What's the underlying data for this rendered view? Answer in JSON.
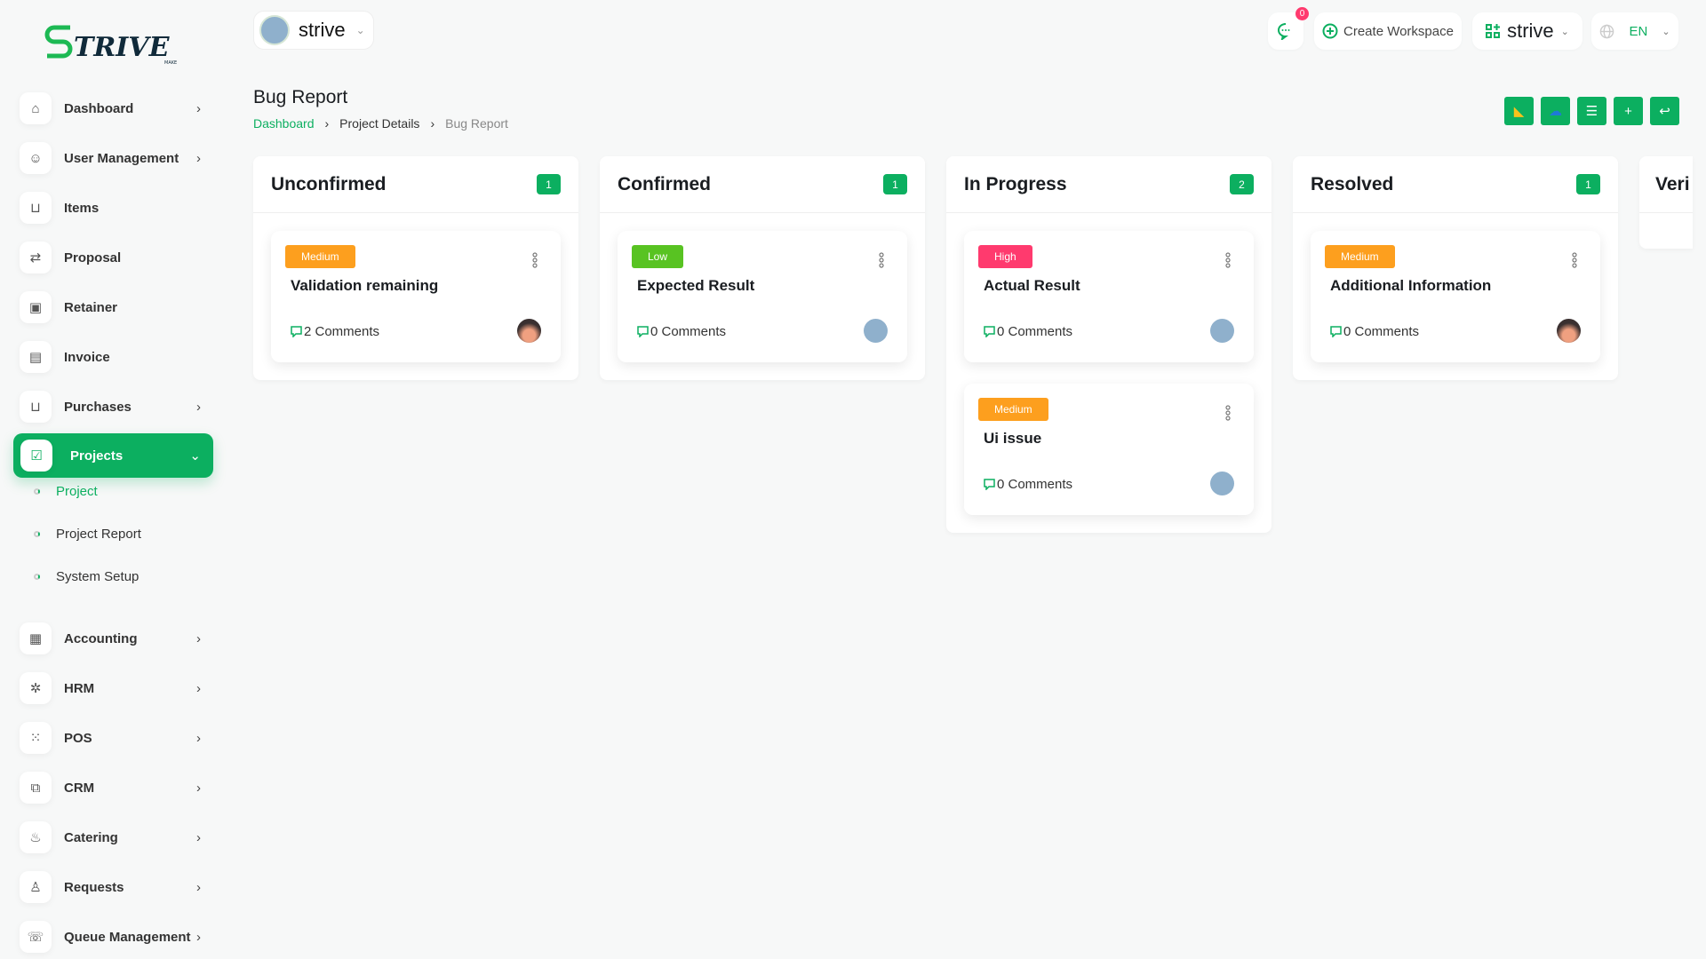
{
  "brand": {
    "logo_text": "STRIVE",
    "logo_sub": "MAKE",
    "accent": "#0caf60"
  },
  "workspace": {
    "name": "strive"
  },
  "topbar": {
    "chat_count": "0",
    "create_workspace": "Create Workspace",
    "workspace_switch": "strive",
    "language": "EN"
  },
  "sidebar": {
    "items": [
      {
        "label": "Dashboard",
        "icon": "home-icon",
        "chevron": true
      },
      {
        "label": "User Management",
        "icon": "users-icon",
        "chevron": true
      },
      {
        "label": "Items",
        "icon": "cart-icon",
        "chevron": false
      },
      {
        "label": "Proposal",
        "icon": "proposal-icon",
        "chevron": false
      },
      {
        "label": "Retainer",
        "icon": "retainer-icon",
        "chevron": false
      },
      {
        "label": "Invoice",
        "icon": "invoice-icon",
        "chevron": false
      },
      {
        "label": "Purchases",
        "icon": "cart-icon",
        "chevron": true
      },
      {
        "label": "Projects",
        "icon": "checkbox-icon",
        "chevron": true,
        "active": true
      },
      {
        "label": "Accounting",
        "icon": "grid-icon",
        "chevron": true
      },
      {
        "label": "HRM",
        "icon": "hrm-icon",
        "chevron": true
      },
      {
        "label": "POS",
        "icon": "dots-grid-icon",
        "chevron": true
      },
      {
        "label": "CRM",
        "icon": "crm-icon",
        "chevron": true
      },
      {
        "label": "Catering",
        "icon": "catering-icon",
        "chevron": true
      },
      {
        "label": "Requests",
        "icon": "user-plus-icon",
        "chevron": true
      },
      {
        "label": "Queue Management",
        "icon": "phone-icon",
        "chevron": true
      }
    ],
    "sub_items": [
      {
        "label": "Project",
        "active": true
      },
      {
        "label": "Project Report"
      },
      {
        "label": "System Setup"
      }
    ]
  },
  "page": {
    "title": "Bug Report",
    "breadcrumb": [
      "Dashboard",
      "Project Details",
      "Bug Report"
    ]
  },
  "actions": [
    {
      "icon": "google-drive-icon"
    },
    {
      "icon": "onedrive-icon"
    },
    {
      "icon": "list-icon"
    },
    {
      "icon": "plus-icon"
    },
    {
      "icon": "back-icon"
    }
  ],
  "columns": [
    {
      "title": "Unconfirmed",
      "count": "1",
      "cards": [
        {
          "priority": "Medium",
          "color": "#fd9f1e",
          "title": "Validation remaining",
          "comments": "2 Comments",
          "avatar": "photo"
        }
      ]
    },
    {
      "title": "Confirmed",
      "count": "1",
      "cards": [
        {
          "priority": "Low",
          "color": "#58c322",
          "title": "Expected Result",
          "comments": "0 Comments",
          "avatar": "building"
        }
      ]
    },
    {
      "title": "In Progress",
      "count": "2",
      "cards": [
        {
          "priority": "High",
          "color": "#ff3a6e",
          "title": "Actual Result",
          "comments": "0 Comments",
          "avatar": "building"
        },
        {
          "priority": "Medium",
          "color": "#fd9f1e",
          "title": "Ui issue",
          "comments": "0 Comments",
          "avatar": "building"
        }
      ]
    },
    {
      "title": "Resolved",
      "count": "1",
      "cards": [
        {
          "priority": "Medium",
          "color": "#fd9f1e",
          "title": "Additional Information",
          "comments": "0 Comments",
          "avatar": "photo"
        }
      ]
    },
    {
      "title": "Veri",
      "count": "",
      "cards": []
    }
  ]
}
